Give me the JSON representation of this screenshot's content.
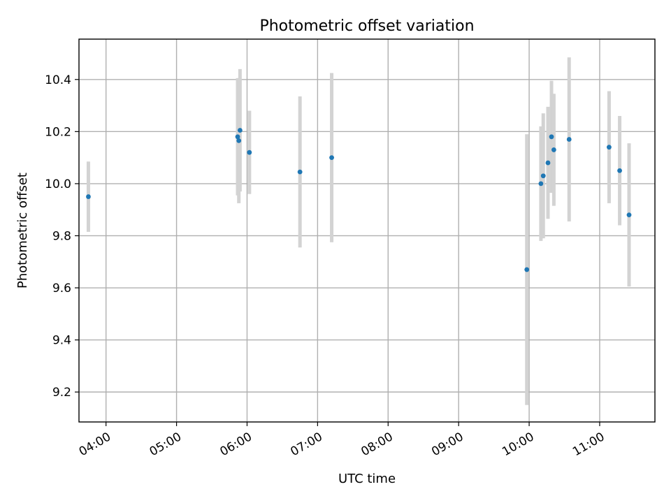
{
  "chart_data": {
    "type": "scatter",
    "title": "Photometric offset variation",
    "xlabel": "UTC time",
    "ylabel": "Photometric offset",
    "grid": true,
    "xlim": [
      "03:37",
      "11:47"
    ],
    "ylim": [
      9.085,
      10.555
    ],
    "x_ticks": [
      "04:00",
      "05:00",
      "06:00",
      "07:00",
      "08:00",
      "09:00",
      "10:00",
      "11:00"
    ],
    "y_ticks": [
      9.2,
      9.4,
      9.6,
      9.8,
      10.0,
      10.2,
      10.4
    ],
    "y_tick_labels": [
      "9.2",
      "9.4",
      "9.6",
      "9.8",
      "10.0",
      "10.2",
      "10.4"
    ],
    "point_color": "#1f77b4",
    "errorbar_color": "#d3d3d3",
    "points": [
      {
        "x": "03:45",
        "y": 9.95,
        "err": 0.135
      },
      {
        "x": "05:52",
        "y": 10.18,
        "err": 0.225
      },
      {
        "x": "05:53",
        "y": 10.165,
        "err": 0.24
      },
      {
        "x": "05:54",
        "y": 10.205,
        "err": 0.235
      },
      {
        "x": "06:02",
        "y": 10.12,
        "err": 0.16
      },
      {
        "x": "06:45",
        "y": 10.045,
        "err": 0.29
      },
      {
        "x": "07:12",
        "y": 10.1,
        "err": 0.325
      },
      {
        "x": "09:58",
        "y": 9.67,
        "err": 0.52
      },
      {
        "x": "10:10",
        "y": 10.0,
        "err": 0.22
      },
      {
        "x": "10:12",
        "y": 10.03,
        "err": 0.24
      },
      {
        "x": "10:16",
        "y": 10.08,
        "err": 0.215
      },
      {
        "x": "10:19",
        "y": 10.18,
        "err": 0.215
      },
      {
        "x": "10:21",
        "y": 10.13,
        "err": 0.215
      },
      {
        "x": "10:34",
        "y": 10.17,
        "err": 0.315
      },
      {
        "x": "11:08",
        "y": 10.14,
        "err": 0.215
      },
      {
        "x": "11:17",
        "y": 10.05,
        "err": 0.21
      },
      {
        "x": "11:25",
        "y": 9.88,
        "err": 0.275
      }
    ]
  }
}
